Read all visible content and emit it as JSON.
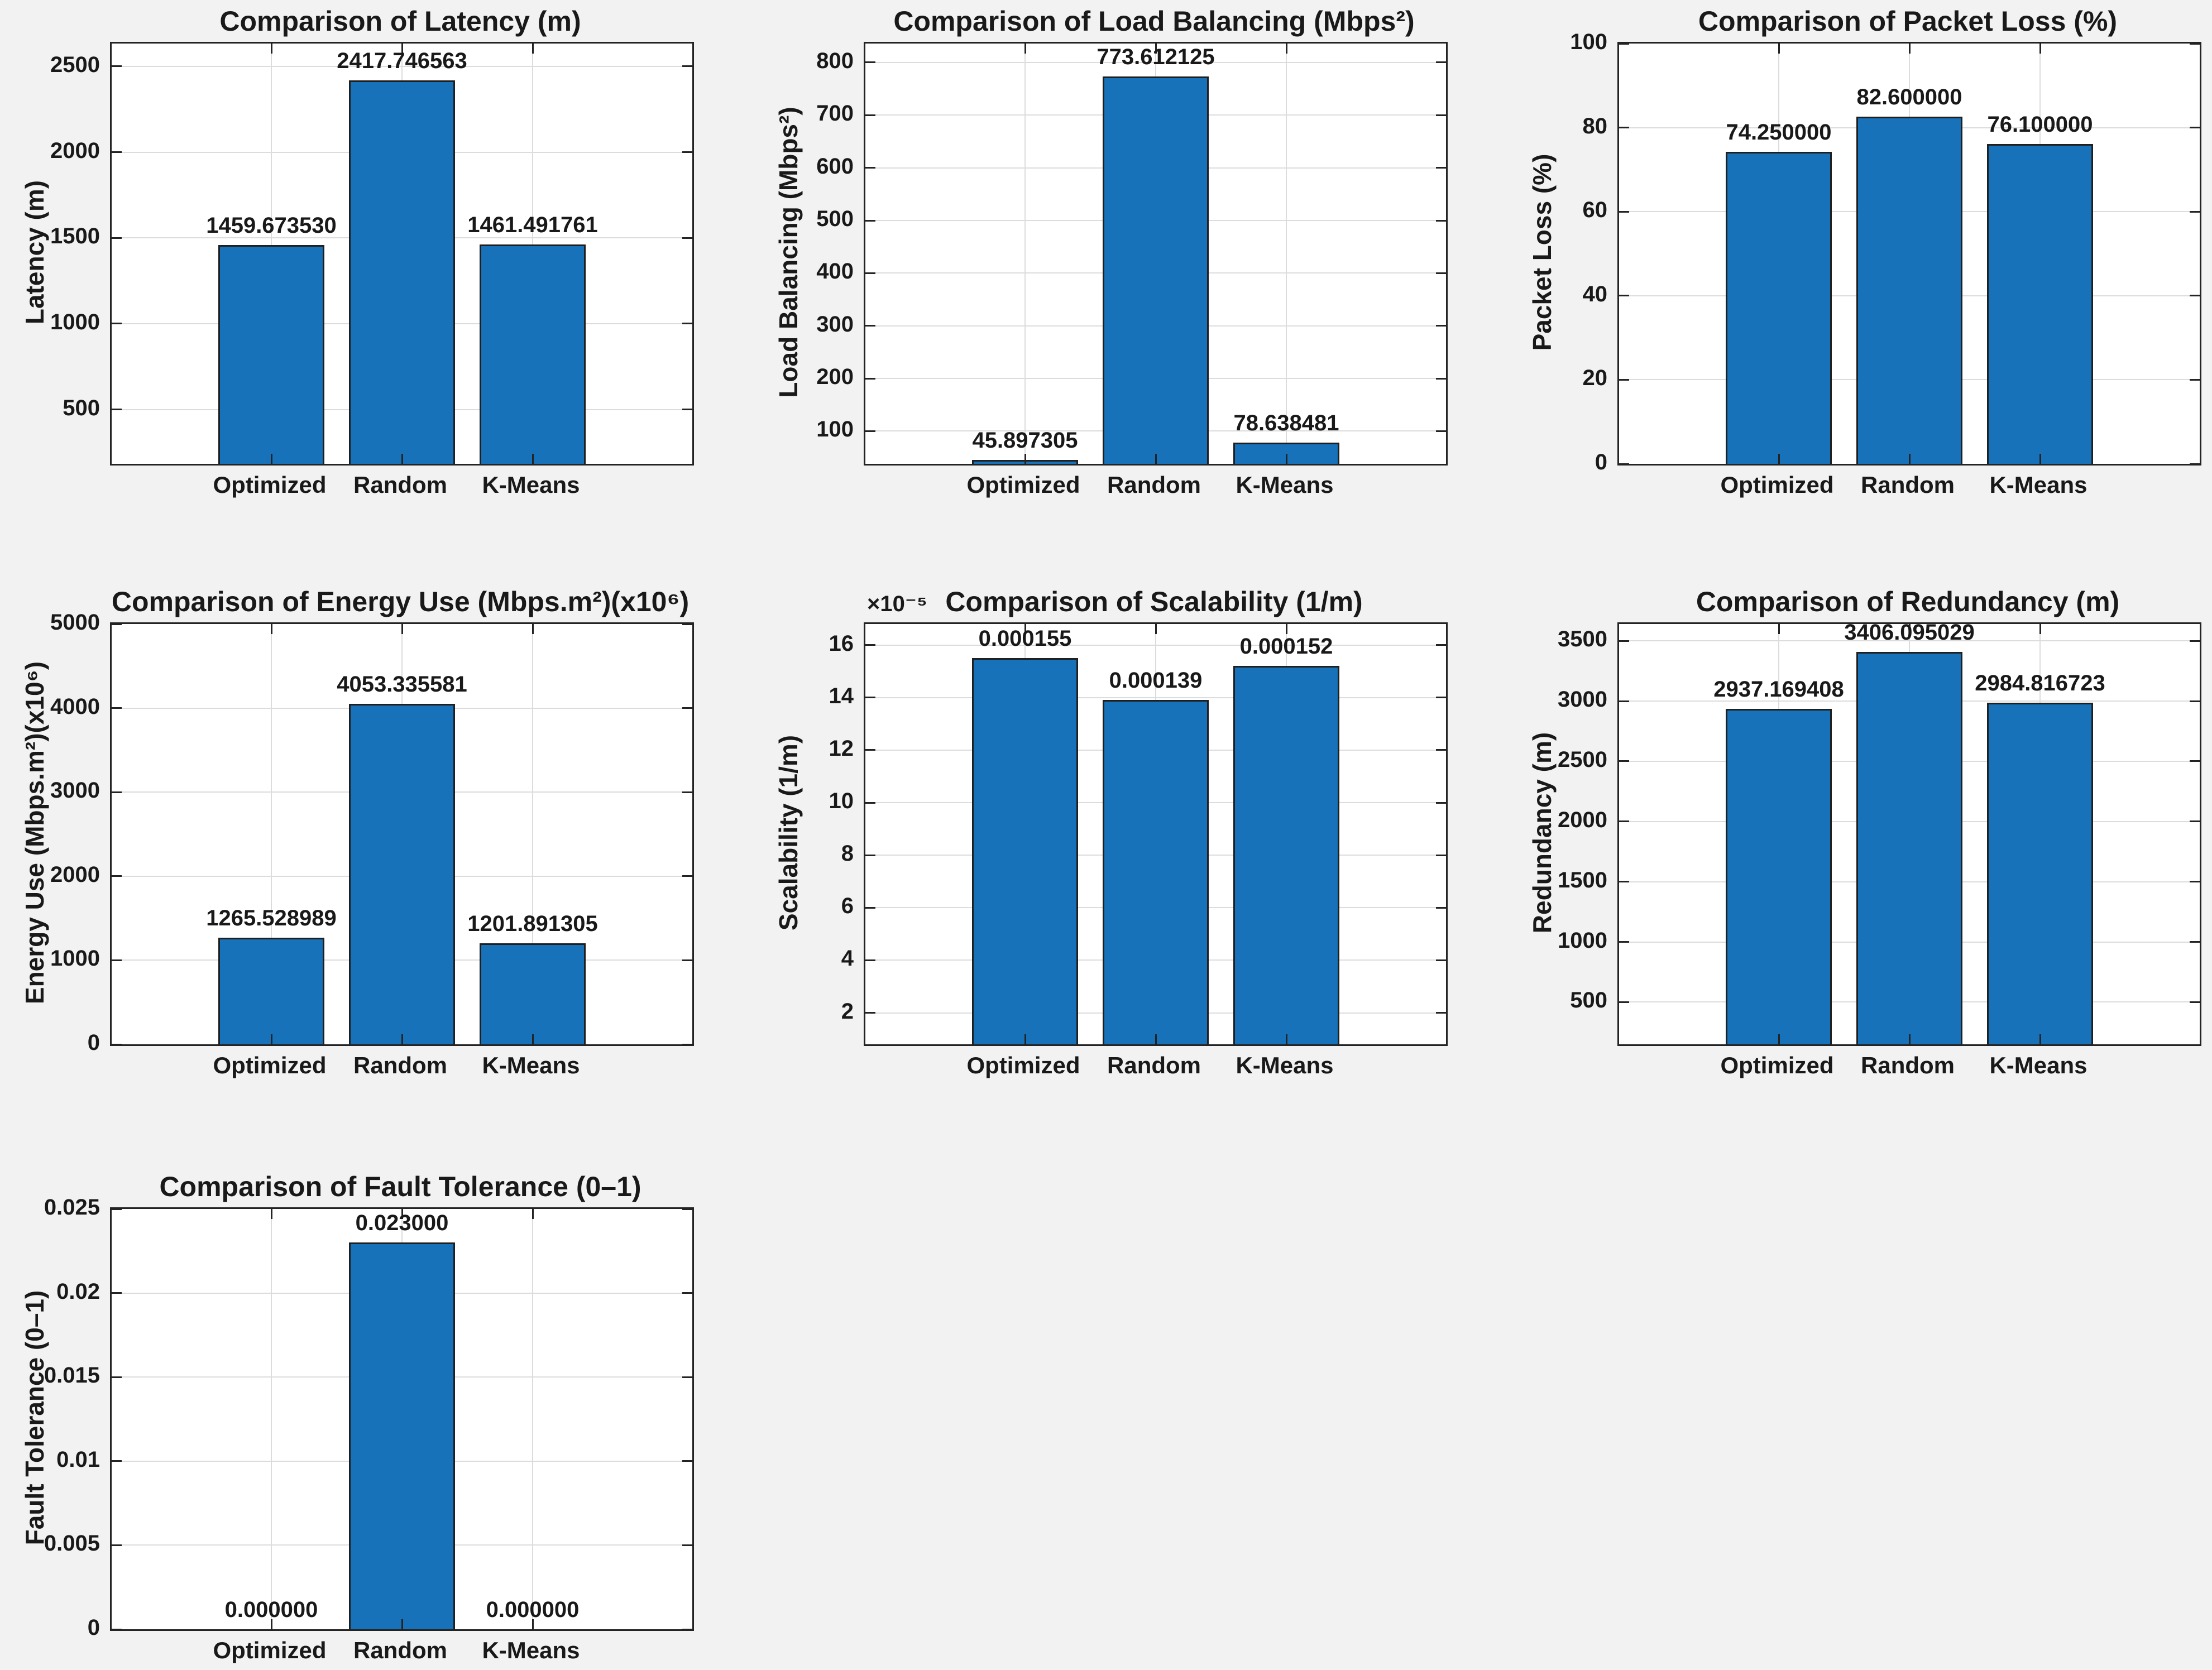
{
  "figure": {
    "background": "#f2f2f3",
    "plot_background": "#ffffff",
    "bar_color": "#1772b9",
    "bar_edge_color": "#1f1f1f",
    "grid_color": "#dcdcdc",
    "axis_color": "#232323",
    "text_color": "#191919"
  },
  "chart_data": [
    {
      "type": "bar",
      "title": "Comparison of Latency (m)",
      "ylabel": "Latency (m)",
      "categories": [
        "Optimized",
        "Random",
        "K-Means"
      ],
      "values": [
        1459.67353,
        2417.746563,
        1461.491761
      ],
      "value_labels": [
        "1459.673530",
        "2417.746563",
        "1461.491761"
      ],
      "yticks": [
        500,
        1000,
        1500,
        2000,
        2500
      ],
      "ytick_labels": [
        "500",
        "1000",
        "1500",
        "2000",
        "2500"
      ],
      "ylim": [
        183,
        2633
      ],
      "grid": true,
      "legend": null,
      "offset_label": null
    },
    {
      "type": "bar",
      "title": "Comparison of Load Balancing (Mbps²)",
      "ylabel": "Load Balancing (Mbps²)",
      "categories": [
        "Optimized",
        "Random",
        "K-Means"
      ],
      "values": [
        45.897305,
        773.612125,
        78.638481
      ],
      "value_labels": [
        "45.897305",
        "773.612125",
        "78.638481"
      ],
      "yticks": [
        100,
        200,
        300,
        400,
        500,
        600,
        700,
        800
      ],
      "ytick_labels": [
        "100",
        "200",
        "300",
        "400",
        "500",
        "600",
        "700",
        "800"
      ],
      "ylim": [
        38,
        836
      ],
      "grid": true,
      "legend": null,
      "offset_label": null
    },
    {
      "type": "bar",
      "title": "Comparison of Packet Loss (%)",
      "ylabel": "Packet Loss (%)",
      "categories": [
        "Optimized",
        "Random",
        "K-Means"
      ],
      "values": [
        74.25,
        82.6,
        76.1
      ],
      "value_labels": [
        "74.250000",
        "82.600000",
        "76.100000"
      ],
      "yticks": [
        0,
        20,
        40,
        60,
        80,
        100
      ],
      "ytick_labels": [
        "0",
        "20",
        "40",
        "60",
        "80",
        "100"
      ],
      "ylim": [
        0,
        100
      ],
      "grid": true,
      "legend": null,
      "offset_label": null
    },
    {
      "type": "bar",
      "title": "Comparison of Energy Use (Mbps.m²)(x10⁶)",
      "ylabel": "Energy Use (Mbps.m²)(x10⁶)",
      "categories": [
        "Optimized",
        "Random",
        "K-Means"
      ],
      "values": [
        1265.528989,
        4053.335581,
        1201.891305
      ],
      "value_labels": [
        "1265.528989",
        "4053.335581",
        "1201.891305"
      ],
      "yticks": [
        0,
        1000,
        2000,
        3000,
        4000,
        5000
      ],
      "ytick_labels": [
        "0",
        "1000",
        "2000",
        "3000",
        "4000",
        "5000"
      ],
      "ylim": [
        0,
        5000
      ],
      "grid": true,
      "legend": null,
      "offset_label": null
    },
    {
      "type": "bar",
      "title": "Comparison of Scalability (1/m)",
      "ylabel": "Scalability (1/m)",
      "categories": [
        "Optimized",
        "Random",
        "K-Means"
      ],
      "values": [
        0.000155,
        0.000139,
        0.000152
      ],
      "value_labels": [
        "0.000155",
        "0.000139",
        "0.000152"
      ],
      "yticks": [
        2e-05,
        4e-05,
        6e-05,
        8e-05,
        0.0001,
        0.00012,
        0.00014,
        0.00016
      ],
      "ytick_labels": [
        "2",
        "4",
        "6",
        "8",
        "10",
        "12",
        "14",
        "16"
      ],
      "ylim": [
        8e-06,
        0.000168
      ],
      "grid": true,
      "legend": null,
      "offset_label": "×10⁻⁵"
    },
    {
      "type": "bar",
      "title": "Comparison of Redundancy (m)",
      "ylabel": "Redundancy (m)",
      "categories": [
        "Optimized",
        "Random",
        "K-Means"
      ],
      "values": [
        2937.169408,
        3406.095029,
        2984.816723
      ],
      "value_labels": [
        "2937.169408",
        "3406.095029",
        "2984.816723"
      ],
      "yticks": [
        500,
        1000,
        1500,
        2000,
        2500,
        3000,
        3500
      ],
      "ytick_labels": [
        "500",
        "1000",
        "1500",
        "2000",
        "2500",
        "3000",
        "3500"
      ],
      "ylim": [
        150,
        3640
      ],
      "grid": true,
      "legend": null,
      "offset_label": null
    },
    {
      "type": "bar",
      "title": "Comparison of Fault Tolerance (0–1)",
      "ylabel": "Fault Tolerance (0–1)",
      "categories": [
        "Optimized",
        "Random",
        "K-Means"
      ],
      "values": [
        0.0,
        0.023,
        0.0
      ],
      "value_labels": [
        "0.000000",
        "0.023000",
        "0.000000"
      ],
      "yticks": [
        0,
        0.005,
        0.01,
        0.015,
        0.02,
        0.025
      ],
      "ytick_labels": [
        "0",
        "0.005",
        "0.01",
        "0.015",
        "0.02",
        "0.025"
      ],
      "ylim": [
        0,
        0.025
      ],
      "grid": true,
      "legend": null,
      "offset_label": null
    }
  ]
}
